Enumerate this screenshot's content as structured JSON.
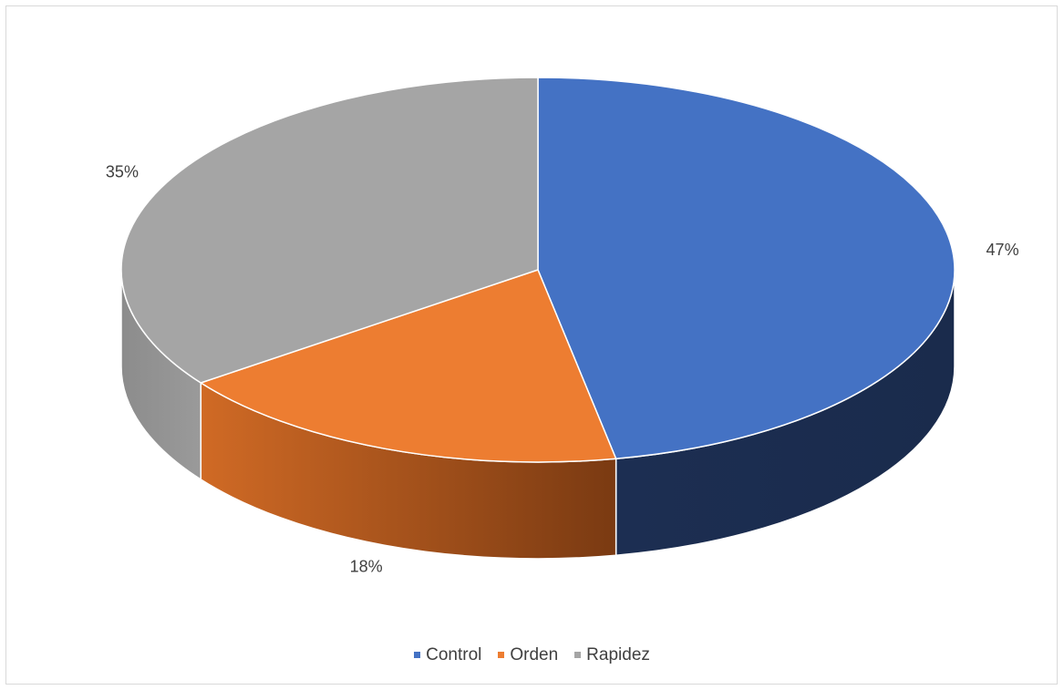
{
  "chart_data": {
    "type": "pie",
    "style": "3d",
    "title": "",
    "legend_position": "bottom",
    "slices": [
      {
        "name": "Control",
        "value": 47,
        "label": "47%",
        "color": "#4472C4",
        "side_color": "#1F3560"
      },
      {
        "name": "Orden",
        "value": 18,
        "label": "18%",
        "color": "#ED7D31",
        "side_color": "#B95E22"
      },
      {
        "name": "Rapidez",
        "value": 35,
        "label": "35%",
        "color": "#A5A5A5",
        "side_color": "#7F7F7F"
      }
    ]
  }
}
